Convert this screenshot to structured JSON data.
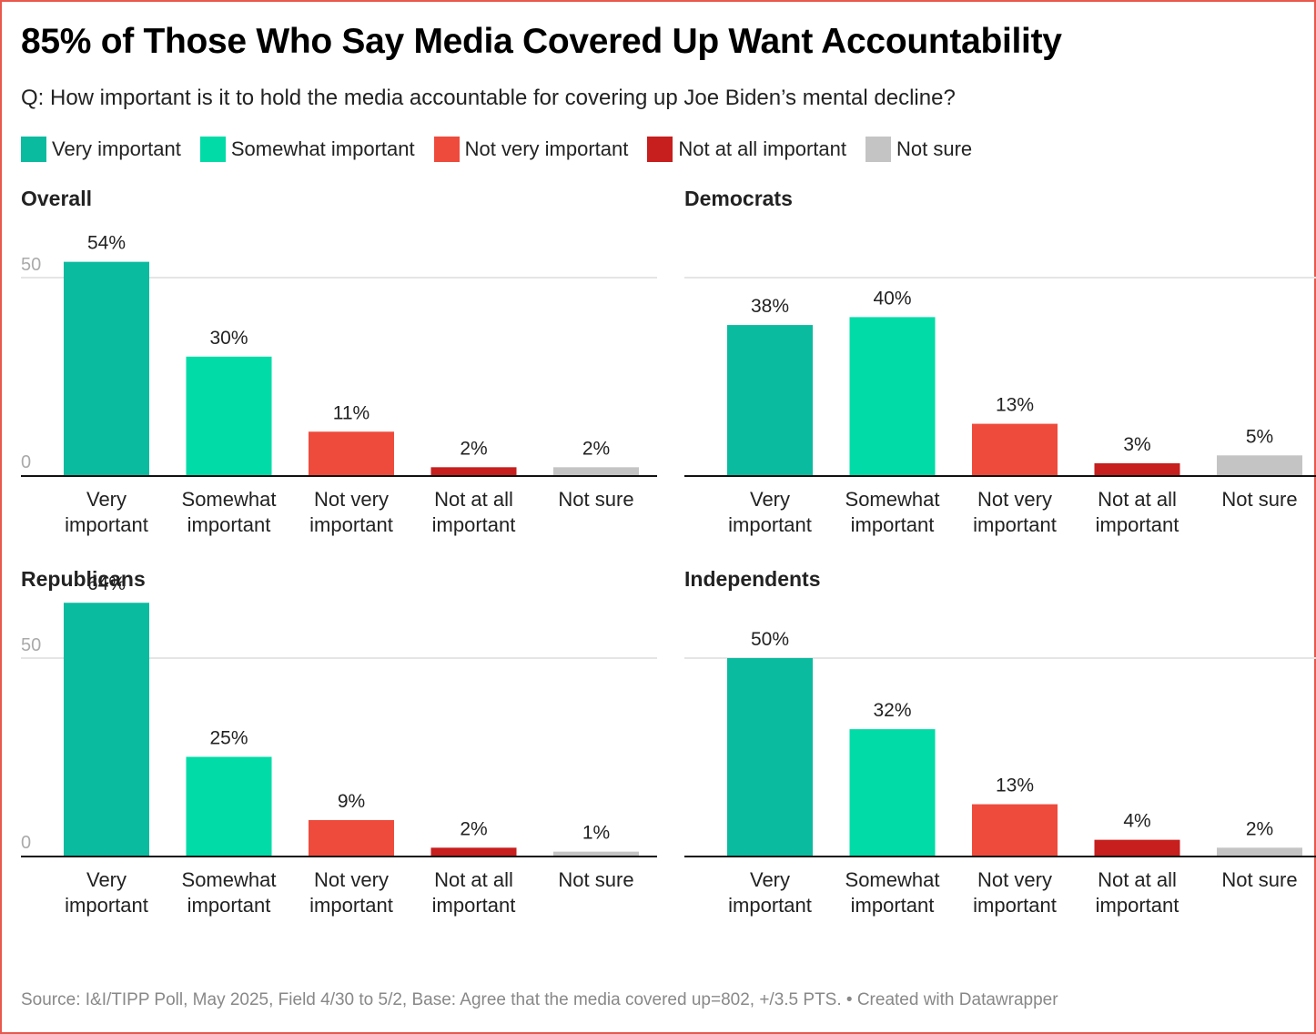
{
  "title": "85% of Those Who Say Media Covered Up Want Accountability",
  "subtitle": "Q: How important is it to hold the media accountable for covering up Joe Biden’s mental decline?",
  "legend": [
    {
      "label": "Very important",
      "color": "#0bbba0"
    },
    {
      "label": "Somewhat important",
      "color": "#00dba7"
    },
    {
      "label": "Not very important",
      "color": "#ee4b3d"
    },
    {
      "label": "Not at all important",
      "color": "#c71e1e"
    },
    {
      "label": "Not sure",
      "color": "#c4c4c4"
    }
  ],
  "source": "Source: I&I/TIPP Poll, May 2025, Field 4/30 to 5/2, Base: Agree that the media covered up=802, +/3.5 PTS. • Created with Datawrapper",
  "chart_data": [
    {
      "type": "bar",
      "title": "Overall",
      "categories": [
        [
          "Very",
          "important"
        ],
        [
          "Somewhat",
          "important"
        ],
        [
          "Not very",
          "important"
        ],
        [
          "Not at all",
          "important"
        ],
        [
          "Not sure"
        ]
      ],
      "values": [
        54,
        30,
        11,
        2,
        2
      ],
      "value_labels": [
        "54%",
        "30%",
        "11%",
        "2%",
        "2%"
      ],
      "yticks": [
        "0",
        "50"
      ],
      "ytick_values": [
        0,
        50
      ],
      "show_ytick_labels": true,
      "ylim": [
        0,
        54
      ],
      "grid": true
    },
    {
      "type": "bar",
      "title": "Democrats",
      "categories": [
        [
          "Very",
          "important"
        ],
        [
          "Somewhat",
          "important"
        ],
        [
          "Not very",
          "important"
        ],
        [
          "Not at all",
          "important"
        ],
        [
          "Not sure"
        ]
      ],
      "values": [
        38,
        40,
        13,
        3,
        5
      ],
      "value_labels": [
        "38%",
        "40%",
        "13%",
        "3%",
        "5%"
      ],
      "yticks": [
        "0",
        "50"
      ],
      "ytick_values": [
        0,
        50
      ],
      "show_ytick_labels": false,
      "ylim": [
        0,
        54
      ],
      "grid": true
    },
    {
      "type": "bar",
      "title": "Republicans",
      "categories": [
        [
          "Very",
          "important"
        ],
        [
          "Somewhat",
          "important"
        ],
        [
          "Not very",
          "important"
        ],
        [
          "Not at all",
          "important"
        ],
        [
          "Not sure"
        ]
      ],
      "values": [
        64,
        25,
        9,
        2,
        1
      ],
      "value_labels": [
        "64%",
        "25%",
        "9%",
        "2%",
        "1%"
      ],
      "yticks": [
        "0",
        "50"
      ],
      "ytick_values": [
        0,
        50
      ],
      "show_ytick_labels": true,
      "ylim": [
        0,
        64
      ],
      "grid": true
    },
    {
      "type": "bar",
      "title": "Independents",
      "categories": [
        [
          "Very",
          "important"
        ],
        [
          "Somewhat",
          "important"
        ],
        [
          "Not very",
          "important"
        ],
        [
          "Not at all",
          "important"
        ],
        [
          "Not sure"
        ]
      ],
      "values": [
        50,
        32,
        13,
        4,
        2
      ],
      "value_labels": [
        "50%",
        "32%",
        "13%",
        "4%",
        "2%"
      ],
      "yticks": [
        "0",
        "50"
      ],
      "ytick_values": [
        0,
        50
      ],
      "show_ytick_labels": false,
      "ylim": [
        0,
        64
      ],
      "grid": true
    }
  ]
}
